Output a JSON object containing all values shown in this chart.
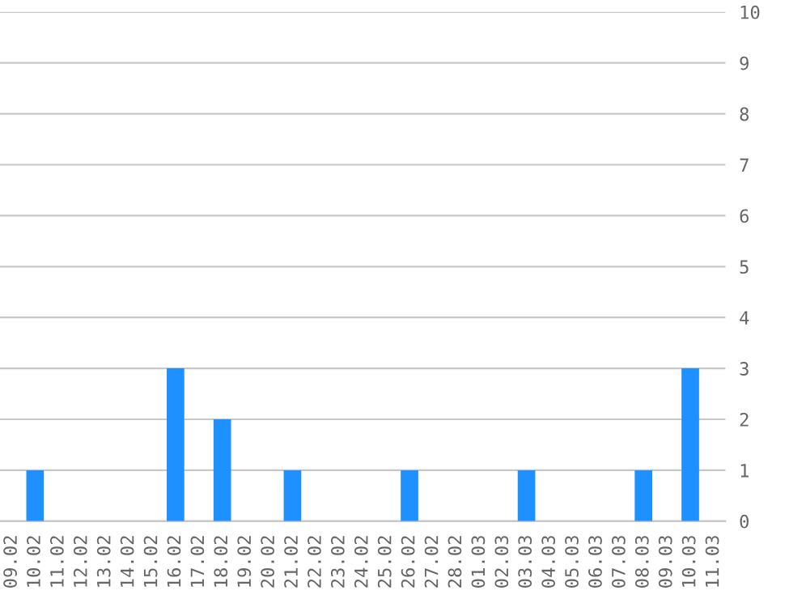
{
  "chart_data": {
    "type": "bar",
    "categories": [
      "09.02",
      "10.02",
      "11.02",
      "12.02",
      "13.02",
      "14.02",
      "15.02",
      "16.02",
      "17.02",
      "18.02",
      "19.02",
      "20.02",
      "21.02",
      "22.02",
      "23.02",
      "24.02",
      "25.02",
      "26.02",
      "27.02",
      "28.02",
      "01.03",
      "02.03",
      "03.03",
      "04.03",
      "05.03",
      "06.03",
      "07.03",
      "08.03",
      "09.03",
      "10.03",
      "11.03"
    ],
    "values": [
      0,
      1,
      0,
      0,
      0,
      0,
      0,
      3,
      0,
      2,
      0,
      0,
      1,
      0,
      0,
      0,
      0,
      1,
      0,
      0,
      0,
      0,
      1,
      0,
      0,
      0,
      0,
      1,
      0,
      3,
      0
    ],
    "color": "#1e90ff",
    "ylim": [
      0,
      10
    ],
    "yticks": [
      0,
      1,
      2,
      3,
      4,
      5,
      6,
      7,
      8,
      9,
      10
    ],
    "grid": "y"
  }
}
